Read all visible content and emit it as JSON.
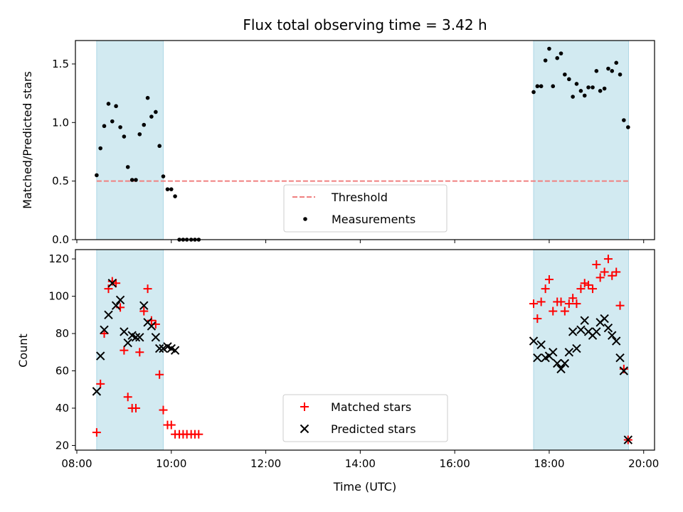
{
  "chart_data": {
    "title": "Flux total observing time = 3.42 h",
    "xlabel": "Time (UTC)",
    "x_unit": "hours UTC",
    "xlim": [
      7.97,
      20.23
    ],
    "x_ticks": [
      8,
      10,
      12,
      14,
      16,
      18,
      20
    ],
    "x_tick_labels": [
      "08:00",
      "10:00",
      "12:00",
      "14:00",
      "16:00",
      "18:00",
      "20:00"
    ],
    "shaded_intervals": [
      [
        8.42,
        9.83
      ],
      [
        17.67,
        19.68
      ]
    ],
    "shade_color": "#add8e6",
    "panels": [
      {
        "type": "scatter",
        "ylabel": "Matched/Predicted stars",
        "ylim": [
          0,
          1.7
        ],
        "y_ticks": [
          0.0,
          0.5,
          1.0,
          1.5
        ],
        "y_tick_labels": [
          "0.0",
          "0.5",
          "1.0",
          "1.5"
        ],
        "threshold": 0.5,
        "threshold_color": "#f08080",
        "legend_position": "lower center",
        "series": [
          {
            "name": "Measurements",
            "marker": "dot",
            "color": "#000000",
            "points": [
              [
                8.42,
                0.55
              ],
              [
                8.5,
                0.78
              ],
              [
                8.58,
                0.97
              ],
              [
                8.67,
                1.16
              ],
              [
                8.75,
                1.01
              ],
              [
                8.83,
                1.14
              ],
              [
                8.92,
                0.96
              ],
              [
                9.0,
                0.88
              ],
              [
                9.08,
                0.62
              ],
              [
                9.17,
                0.51
              ],
              [
                9.25,
                0.51
              ],
              [
                9.33,
                0.9
              ],
              [
                9.42,
                0.98
              ],
              [
                9.5,
                1.21
              ],
              [
                9.58,
                1.05
              ],
              [
                9.67,
                1.09
              ],
              [
                9.75,
                0.8
              ],
              [
                9.83,
                0.54
              ],
              [
                9.92,
                0.43
              ],
              [
                10.0,
                0.43
              ],
              [
                10.08,
                0.37
              ],
              [
                10.17,
                0.0
              ],
              [
                10.25,
                0.0
              ],
              [
                10.33,
                0.0
              ],
              [
                10.42,
                0.0
              ],
              [
                10.5,
                0.0
              ],
              [
                10.58,
                0.0
              ],
              [
                17.67,
                1.26
              ],
              [
                17.75,
                1.31
              ],
              [
                17.83,
                1.31
              ],
              [
                17.92,
                1.53
              ],
              [
                18.0,
                1.63
              ],
              [
                18.08,
                1.31
              ],
              [
                18.17,
                1.55
              ],
              [
                18.25,
                1.59
              ],
              [
                18.33,
                1.41
              ],
              [
                18.42,
                1.37
              ],
              [
                18.5,
                1.22
              ],
              [
                18.58,
                1.33
              ],
              [
                18.67,
                1.27
              ],
              [
                18.75,
                1.23
              ],
              [
                18.83,
                1.3
              ],
              [
                18.92,
                1.3
              ],
              [
                19.0,
                1.44
              ],
              [
                19.08,
                1.27
              ],
              [
                19.17,
                1.29
              ],
              [
                19.25,
                1.46
              ],
              [
                19.33,
                1.44
              ],
              [
                19.42,
                1.51
              ],
              [
                19.5,
                1.41
              ],
              [
                19.58,
                1.02
              ],
              [
                19.67,
                0.96
              ]
            ]
          }
        ],
        "legend": [
          {
            "label": "Threshold",
            "symbol": "dashed-line"
          },
          {
            "label": "Measurements",
            "symbol": "dot"
          }
        ]
      },
      {
        "type": "scatter",
        "ylabel": "Count",
        "ylim": [
          17.5,
          125
        ],
        "y_ticks": [
          20,
          40,
          60,
          80,
          100,
          120
        ],
        "y_tick_labels": [
          "20",
          "40",
          "60",
          "80",
          "100",
          "120"
        ],
        "legend_position": "lower center",
        "series": [
          {
            "name": "Matched stars",
            "marker": "plus",
            "color": "#ff0000",
            "points": [
              [
                8.42,
                27
              ],
              [
                8.5,
                53
              ],
              [
                8.58,
                80
              ],
              [
                8.67,
                104
              ],
              [
                8.75,
                108
              ],
              [
                8.83,
                107
              ],
              [
                8.92,
                94
              ],
              [
                9.0,
                71
              ],
              [
                9.08,
                46
              ],
              [
                9.17,
                40
              ],
              [
                9.25,
                40
              ],
              [
                9.33,
                70
              ],
              [
                9.42,
                92
              ],
              [
                9.5,
                104
              ],
              [
                9.58,
                87
              ],
              [
                9.67,
                85
              ],
              [
                9.75,
                58
              ],
              [
                9.83,
                39
              ],
              [
                9.92,
                31
              ],
              [
                10.0,
                31
              ],
              [
                10.08,
                26
              ],
              [
                10.17,
                26
              ],
              [
                10.25,
                26
              ],
              [
                10.33,
                26
              ],
              [
                10.42,
                26
              ],
              [
                10.5,
                26
              ],
              [
                10.58,
                26
              ],
              [
                17.67,
                96
              ],
              [
                17.75,
                88
              ],
              [
                17.83,
                97
              ],
              [
                17.92,
                104
              ],
              [
                18.0,
                109
              ],
              [
                18.08,
                92
              ],
              [
                18.17,
                97
              ],
              [
                18.25,
                97
              ],
              [
                18.33,
                92
              ],
              [
                18.42,
                96
              ],
              [
                18.5,
                99
              ],
              [
                18.58,
                96
              ],
              [
                18.67,
                104
              ],
              [
                18.75,
                107
              ],
              [
                18.83,
                106
              ],
              [
                18.92,
                104
              ],
              [
                19.0,
                117
              ],
              [
                19.08,
                110
              ],
              [
                19.17,
                113
              ],
              [
                19.25,
                120
              ],
              [
                19.33,
                111
              ],
              [
                19.42,
                113
              ],
              [
                19.5,
                95
              ],
              [
                19.58,
                61
              ],
              [
                19.67,
                23
              ]
            ]
          },
          {
            "name": "Predicted stars",
            "marker": "x",
            "color": "#000000",
            "points": [
              [
                8.42,
                49
              ],
              [
                8.5,
                68
              ],
              [
                8.58,
                82
              ],
              [
                8.67,
                90
              ],
              [
                8.75,
                107
              ],
              [
                8.83,
                95
              ],
              [
                8.92,
                98
              ],
              [
                9.0,
                81
              ],
              [
                9.08,
                75
              ],
              [
                9.17,
                79
              ],
              [
                9.25,
                78
              ],
              [
                9.33,
                78
              ],
              [
                9.42,
                95
              ],
              [
                9.5,
                86
              ],
              [
                9.58,
                84
              ],
              [
                9.67,
                78
              ],
              [
                9.75,
                72
              ],
              [
                9.83,
                72
              ],
              [
                9.92,
                73
              ],
              [
                10.0,
                72
              ],
              [
                10.08,
                71
              ],
              [
                17.67,
                76
              ],
              [
                17.75,
                67
              ],
              [
                17.83,
                74
              ],
              [
                17.92,
                67
              ],
              [
                18.0,
                68
              ],
              [
                18.08,
                70
              ],
              [
                18.17,
                64
              ],
              [
                18.25,
                61
              ],
              [
                18.33,
                64
              ],
              [
                18.42,
                70
              ],
              [
                18.5,
                81
              ],
              [
                18.58,
                72
              ],
              [
                18.67,
                82
              ],
              [
                18.75,
                87
              ],
              [
                18.83,
                81
              ],
              [
                18.92,
                79
              ],
              [
                19.0,
                81
              ],
              [
                19.08,
                86
              ],
              [
                19.17,
                88
              ],
              [
                19.25,
                83
              ],
              [
                19.33,
                79
              ],
              [
                19.42,
                76
              ],
              [
                19.5,
                67
              ],
              [
                19.58,
                60
              ],
              [
                19.67,
                23
              ]
            ]
          }
        ],
        "legend": [
          {
            "label": "Matched stars",
            "symbol": "plus"
          },
          {
            "label": "Predicted stars",
            "symbol": "x"
          }
        ]
      }
    ]
  }
}
